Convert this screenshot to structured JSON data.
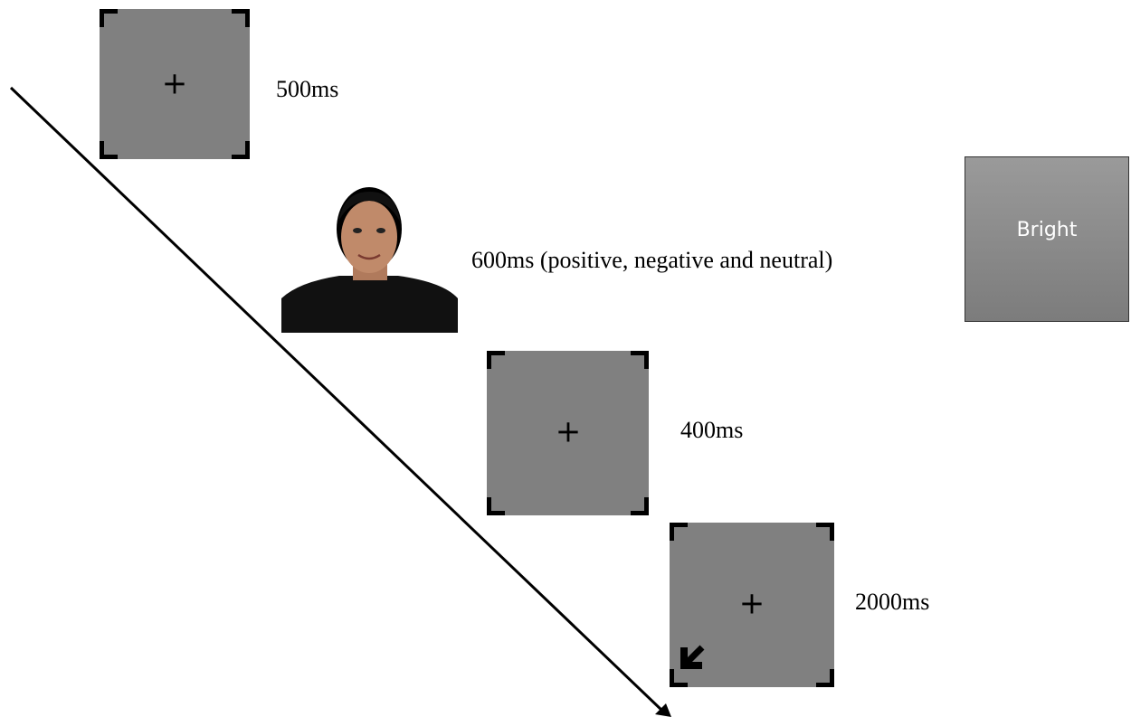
{
  "frames": [
    {
      "label": "500ms"
    },
    {
      "label": "600ms (positive, negative and neutral)"
    },
    {
      "label": "400ms"
    },
    {
      "label": "2000ms"
    }
  ],
  "side_box": {
    "label": "Bright"
  }
}
